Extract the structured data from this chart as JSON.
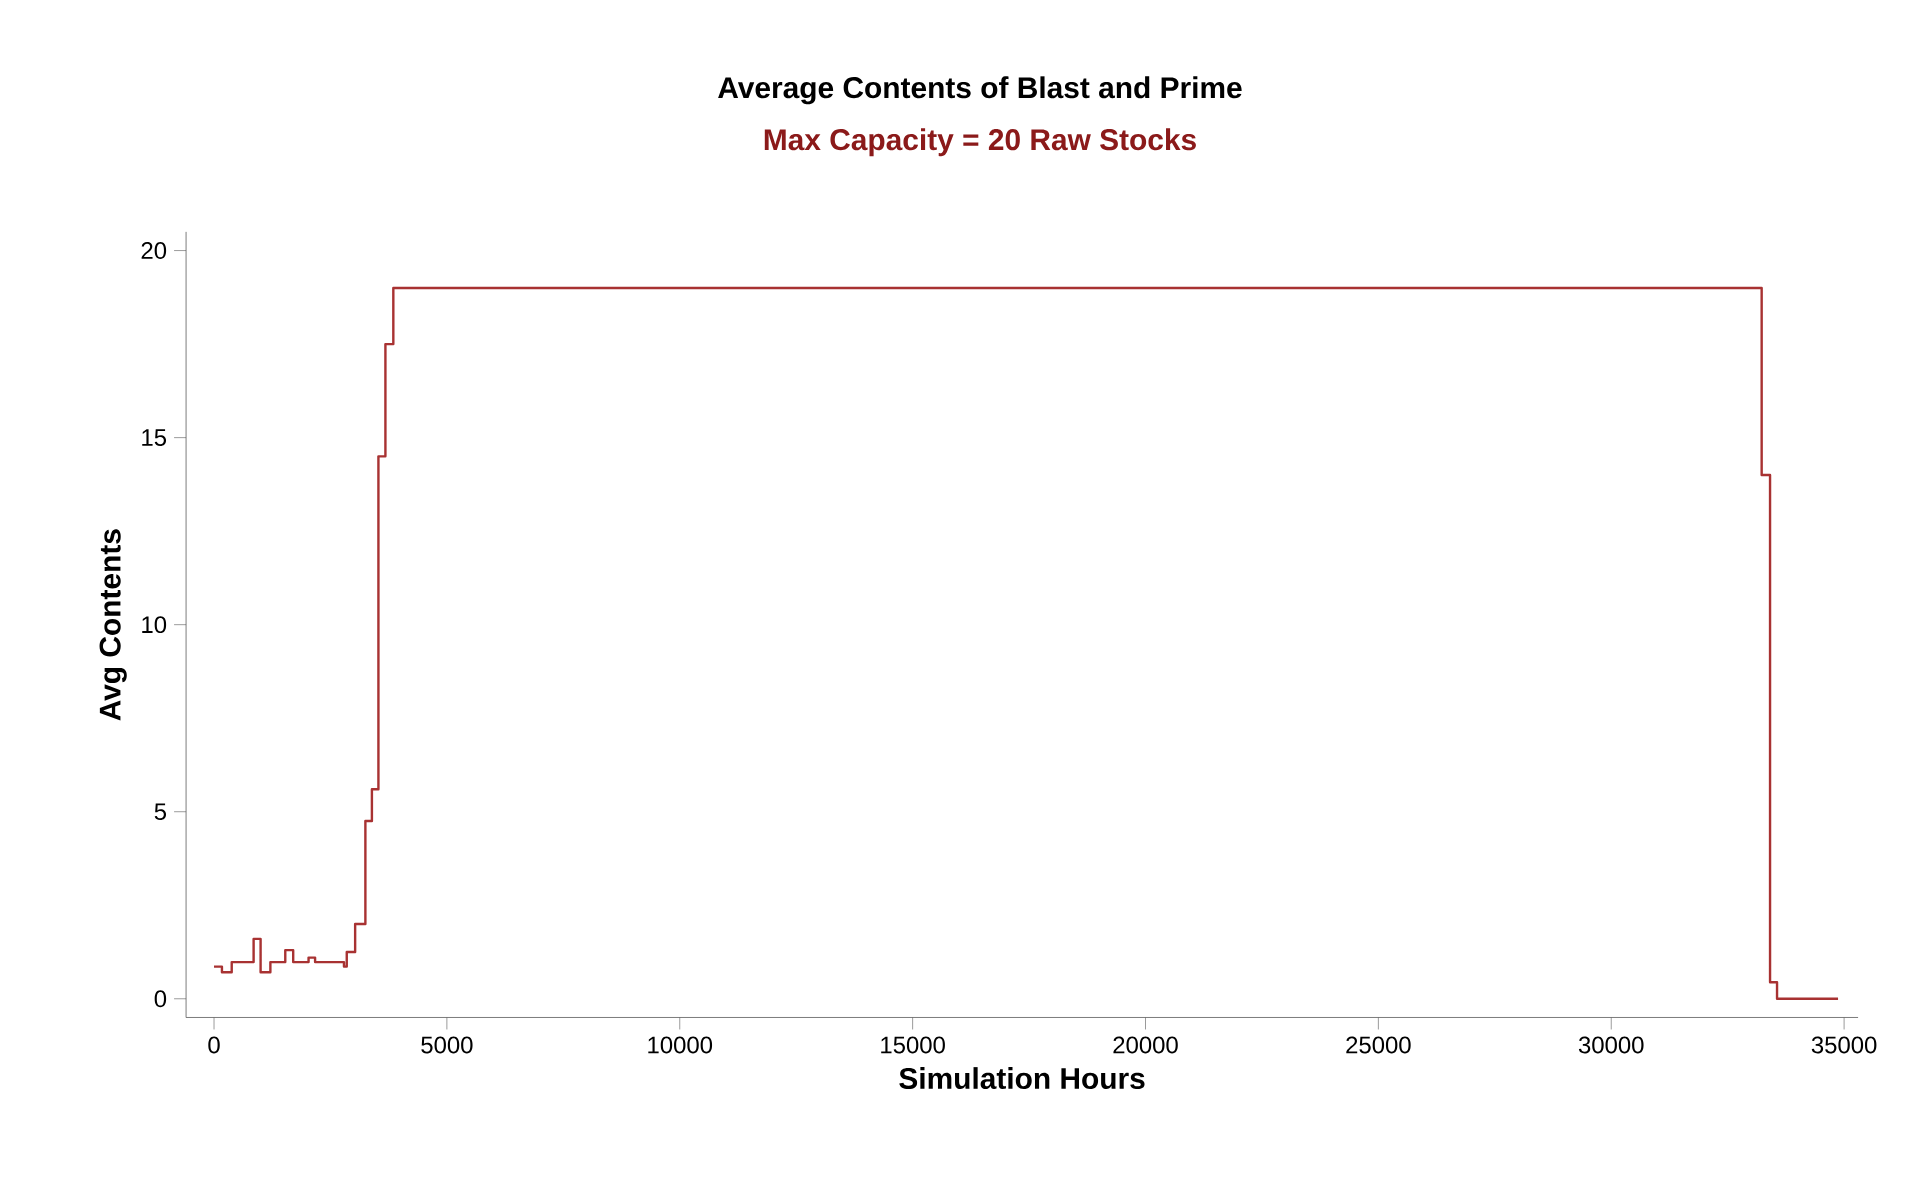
{
  "chart_data": {
    "type": "step",
    "title": "Average Contents of Blast and Prime",
    "subtitle": "Max Capacity = 20 Raw Stocks",
    "xlabel": "Simulation Hours",
    "ylabel": "Avg Contents",
    "series": [
      {
        "color": "#a83232",
        "x": [
          0,
          170,
          380,
          850,
          1000,
          1210,
          1530,
          1700,
          2030,
          2170,
          2790,
          2850,
          3030,
          3250,
          3390,
          3530,
          3680,
          3850,
          33230,
          33410,
          33560,
          34870
        ],
        "values": [
          0.86,
          0.71,
          0.98,
          1.6,
          0.71,
          0.98,
          1.3,
          0.98,
          1.1,
          0.98,
          0.86,
          1.25,
          2.0,
          4.75,
          5.6,
          14.5,
          17.5,
          19.0,
          14.0,
          0.44,
          0,
          0
        ]
      }
    ],
    "xlim": [
      -600,
      35300
    ],
    "ylim": [
      -0.5,
      20.5
    ],
    "xticks": [
      0,
      5000,
      10000,
      15000,
      20000,
      25000,
      30000,
      35000
    ],
    "yticks": [
      0,
      5,
      10,
      15,
      20
    ],
    "grid": false
  }
}
